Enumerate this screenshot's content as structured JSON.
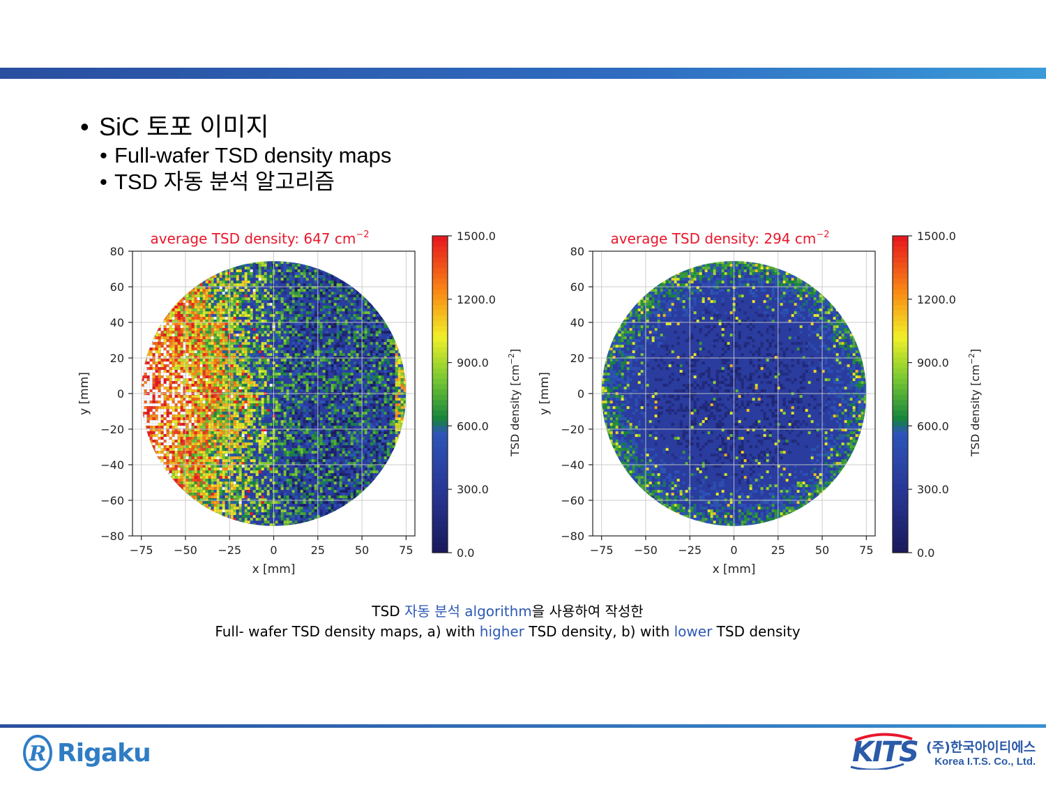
{
  "slide": {
    "bullet_main": "SiC 토포 이미지",
    "bullet_sub1": "Full-wafer TSD density maps",
    "bullet_sub2": "TSD 자동 분석 알고리즘",
    "bullet_glyph": "•"
  },
  "caption": {
    "line1_pre": "TSD ",
    "line1_blue": "자동 분석 algorithm",
    "line1_post": "을 사용하여 작성한",
    "line2_a": "Full- wafer TSD density maps, a) with ",
    "line2_blue1": "higher",
    "line2_b": " TSD density, b) with ",
    "line2_blue2": "lower",
    "line2_c": " TSD density"
  },
  "logos": {
    "rigaku": "Rigaku",
    "rigaku_mark": "R",
    "kits": "KITS",
    "kits_korean": "(주)한국아이티에스",
    "kits_english": "Korea I.T.S. Co., Ltd."
  },
  "colors": {
    "title_red": "#e8172b",
    "accent_blue": "#2e59b5",
    "wafer_base": "#2a3c9e"
  },
  "chart_data": [
    {
      "type": "heatmap",
      "title": "average TSD density: 647 cm",
      "title_exponent": "−2",
      "xlabel": "x [mm]",
      "ylabel": "y [mm]",
      "colorbar_label": "TSD density [cm",
      "colorbar_label_exponent": "−2",
      "colorbar_label_end": "]",
      "xlim": [
        -80,
        80
      ],
      "ylim": [
        -80,
        80
      ],
      "xticks": [
        -75,
        -50,
        -25,
        0,
        25,
        50,
        75
      ],
      "xtick_labels": [
        "−75",
        "−50",
        "−25",
        "0",
        "25",
        "50",
        "75"
      ],
      "yticks": [
        80,
        60,
        40,
        20,
        0,
        -20,
        -40,
        -60,
        -80
      ],
      "ytick_labels": [
        "80",
        "60",
        "40",
        "20",
        "0",
        "−20",
        "−40",
        "−60",
        "−80"
      ],
      "colorbar_ticks": [
        1500,
        1200,
        900,
        600,
        300,
        0
      ],
      "colorbar_tick_labels": [
        "1500.0",
        "1200.0",
        "900.0",
        "600.0",
        "300.0",
        "0.0"
      ],
      "colorbar_range": [
        0,
        1500
      ],
      "grid": true,
      "wafer_radius": 75,
      "average_density": 647,
      "high_density_region": "left"
    },
    {
      "type": "heatmap",
      "title": "average TSD density: 294 cm",
      "title_exponent": "−2",
      "xlabel": "x [mm]",
      "ylabel": "y [mm]",
      "colorbar_label": "TSD density [cm",
      "colorbar_label_exponent": "−2",
      "colorbar_label_end": "]",
      "xlim": [
        -80,
        80
      ],
      "ylim": [
        -80,
        80
      ],
      "xticks": [
        -75,
        -50,
        -25,
        0,
        25,
        50,
        75
      ],
      "xtick_labels": [
        "−75",
        "−50",
        "−25",
        "0",
        "25",
        "50",
        "75"
      ],
      "yticks": [
        80,
        60,
        40,
        20,
        0,
        -20,
        -40,
        -60,
        -80
      ],
      "ytick_labels": [
        "80",
        "60",
        "40",
        "20",
        "0",
        "−20",
        "−40",
        "−60",
        "−80"
      ],
      "colorbar_ticks": [
        1500,
        1200,
        900,
        600,
        300,
        0
      ],
      "colorbar_tick_labels": [
        "1500.0",
        "1200.0",
        "900.0",
        "600.0",
        "300.0",
        "0.0"
      ],
      "colorbar_range": [
        0,
        1500
      ],
      "grid": true,
      "wafer_radius": 75,
      "average_density": 294,
      "high_density_region": "edge"
    }
  ]
}
